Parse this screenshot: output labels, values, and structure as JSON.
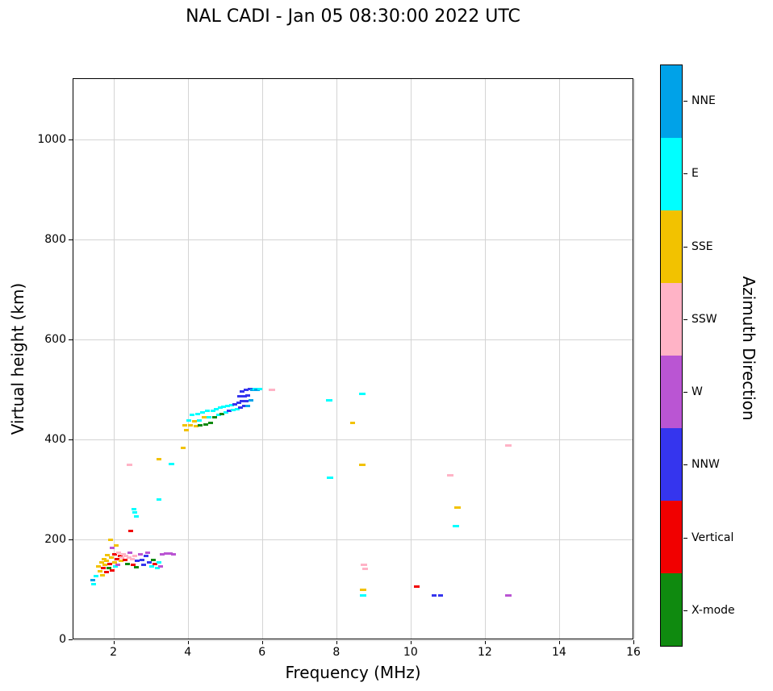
{
  "chart_data": {
    "type": "scatter",
    "title": "NAL CADI - Jan 05 08:30:00 2022 UTC",
    "xlabel": "Frequency (MHz)",
    "ylabel": "Virtual height (km)",
    "xlim": [
      0.9,
      16
    ],
    "ylim": [
      0,
      1122
    ],
    "xticks": [
      2,
      4,
      6,
      8,
      10,
      12,
      14,
      16
    ],
    "yticks": [
      0,
      200,
      400,
      600,
      800,
      1000
    ],
    "grid": true,
    "legend_position": "right-colorbar",
    "colorbar": {
      "label": "Azimuth Direction",
      "categories": [
        {
          "label": "NNE",
          "color": "#00a2e8"
        },
        {
          "label": "E",
          "color": "#00ffff"
        },
        {
          "label": "SSE",
          "color": "#f2c200"
        },
        {
          "label": "SSW",
          "color": "#ffb3c6"
        },
        {
          "label": "W",
          "color": "#ba55d3"
        },
        {
          "label": "NNW",
          "color": "#3535ee"
        },
        {
          "label": "Vertical",
          "color": "#f10000"
        },
        {
          "label": "X-mode",
          "color": "#0f8a0f"
        }
      ]
    },
    "points": [
      [
        1.42,
        120,
        "NNE"
      ],
      [
        1.45,
        112,
        "E"
      ],
      [
        1.5,
        128,
        "E"
      ],
      [
        1.58,
        148,
        "SSE"
      ],
      [
        1.62,
        138,
        "SSE"
      ],
      [
        1.65,
        155,
        "SSE"
      ],
      [
        1.68,
        130,
        "SSE"
      ],
      [
        1.7,
        145,
        "Vertical"
      ],
      [
        1.72,
        162,
        "SSE"
      ],
      [
        1.75,
        150,
        "SSE"
      ],
      [
        1.78,
        136,
        "Vertical"
      ],
      [
        1.8,
        158,
        "SSE"
      ],
      [
        1.82,
        170,
        "SSE"
      ],
      [
        1.85,
        145,
        "X-mode"
      ],
      [
        1.88,
        152,
        "Vertical"
      ],
      [
        1.9,
        200,
        "SSE"
      ],
      [
        1.92,
        165,
        "SSE"
      ],
      [
        1.95,
        140,
        "Vertical"
      ],
      [
        1.95,
        185,
        "W"
      ],
      [
        2.0,
        172,
        "Vertical"
      ],
      [
        2.0,
        155,
        "SSE"
      ],
      [
        2.02,
        148,
        "E"
      ],
      [
        2.05,
        190,
        "SSE"
      ],
      [
        2.08,
        162,
        "Vertical"
      ],
      [
        2.1,
        150,
        "W"
      ],
      [
        2.12,
        175,
        "SSW"
      ],
      [
        2.15,
        168,
        "Vertical"
      ],
      [
        2.18,
        158,
        "SSE"
      ],
      [
        2.2,
        165,
        "SSW"
      ],
      [
        2.25,
        172,
        "SSW"
      ],
      [
        2.3,
        160,
        "Vertical"
      ],
      [
        2.32,
        168,
        "SSW"
      ],
      [
        2.35,
        152,
        "X-mode"
      ],
      [
        2.4,
        165,
        "SSW"
      ],
      [
        2.42,
        175,
        "W"
      ],
      [
        2.45,
        218,
        "Vertical"
      ],
      [
        2.48,
        162,
        "SSW"
      ],
      [
        2.5,
        150,
        "Vertical"
      ],
      [
        2.55,
        168,
        "SSW"
      ],
      [
        2.6,
        146,
        "X-mode"
      ],
      [
        2.62,
        158,
        "NNW"
      ],
      [
        2.7,
        172,
        "W"
      ],
      [
        2.75,
        160,
        "NNW"
      ],
      [
        2.8,
        150,
        "NNW"
      ],
      [
        2.85,
        168,
        "NNW"
      ],
      [
        2.9,
        175,
        "W"
      ],
      [
        2.95,
        155,
        "NNW"
      ],
      [
        3.0,
        148,
        "E"
      ],
      [
        3.05,
        160,
        "X-mode"
      ],
      [
        3.1,
        152,
        "Vertical"
      ],
      [
        3.15,
        144,
        "E"
      ],
      [
        3.2,
        155,
        "E"
      ],
      [
        3.25,
        148,
        "W"
      ],
      [
        3.3,
        172,
        "W"
      ],
      [
        3.4,
        173,
        "W"
      ],
      [
        3.5,
        174,
        "W"
      ],
      [
        3.6,
        172,
        "W"
      ],
      [
        2.52,
        262,
        "E"
      ],
      [
        2.56,
        255,
        "E"
      ],
      [
        2.6,
        248,
        "E"
      ],
      [
        3.2,
        282,
        "E"
      ],
      [
        2.42,
        350,
        "SSW",
        7
      ],
      [
        3.55,
        352,
        "E",
        7
      ],
      [
        3.2,
        362,
        "SSE"
      ],
      [
        3.85,
        385,
        "SSE"
      ],
      [
        3.9,
        430,
        "SSE"
      ],
      [
        3.95,
        420,
        "SSE"
      ],
      [
        4.0,
        440,
        "E"
      ],
      [
        4.05,
        430,
        "SSE"
      ],
      [
        4.1,
        450,
        "E"
      ],
      [
        4.15,
        438,
        "SSE"
      ],
      [
        4.2,
        428,
        "SSE"
      ],
      [
        4.25,
        452,
        "E"
      ],
      [
        4.3,
        440,
        "E"
      ],
      [
        4.32,
        430,
        "X-mode"
      ],
      [
        4.38,
        455,
        "E"
      ],
      [
        4.42,
        445,
        "SSE"
      ],
      [
        4.46,
        432,
        "X-mode"
      ],
      [
        4.5,
        458,
        "E"
      ],
      [
        4.55,
        446,
        "E"
      ],
      [
        4.6,
        434,
        "X-mode"
      ],
      [
        4.65,
        458,
        "E"
      ],
      [
        4.7,
        446,
        "X-mode"
      ],
      [
        4.75,
        462,
        "E"
      ],
      [
        4.8,
        450,
        "E"
      ],
      [
        4.85,
        465,
        "E"
      ],
      [
        4.9,
        452,
        "X-mode"
      ],
      [
        4.95,
        466,
        "E"
      ],
      [
        5.0,
        455,
        "E"
      ],
      [
        5.05,
        468,
        "E"
      ],
      [
        5.1,
        458,
        "NNW"
      ],
      [
        5.15,
        470,
        "E"
      ],
      [
        5.2,
        460,
        "E"
      ],
      [
        5.25,
        472,
        "NNW"
      ],
      [
        5.3,
        462,
        "E"
      ],
      [
        5.35,
        474,
        "NNW"
      ],
      [
        5.38,
        488,
        "NNW"
      ],
      [
        5.4,
        465,
        "NNW"
      ],
      [
        5.45,
        478,
        "NNW"
      ],
      [
        5.45,
        497,
        "NNW"
      ],
      [
        5.5,
        468,
        "NNW"
      ],
      [
        5.5,
        488,
        "NNW"
      ],
      [
        5.55,
        500,
        "NNW"
      ],
      [
        5.55,
        478,
        "NNW"
      ],
      [
        5.6,
        490,
        "NNW"
      ],
      [
        5.6,
        468,
        "NNE"
      ],
      [
        5.65,
        502,
        "NNW"
      ],
      [
        5.68,
        480,
        "NNE"
      ],
      [
        5.72,
        500,
        "NNE"
      ],
      [
        5.78,
        502,
        "E"
      ],
      [
        5.85,
        500,
        "NNE",
        7
      ],
      [
        5.92,
        502,
        "E"
      ],
      [
        6.25,
        500,
        "SSW",
        8
      ],
      [
        7.78,
        480,
        "E",
        8
      ],
      [
        7.8,
        325,
        "E",
        8
      ],
      [
        8.42,
        435,
        "SSE",
        6
      ],
      [
        8.68,
        492,
        "E",
        8
      ],
      [
        8.67,
        351,
        "SSE",
        8
      ],
      [
        8.72,
        151,
        "SSW",
        8
      ],
      [
        8.76,
        143,
        "SSW",
        7
      ],
      [
        8.7,
        101,
        "SSE",
        8
      ],
      [
        8.69,
        90,
        "E",
        8
      ],
      [
        10.15,
        108,
        "Vertical",
        7
      ],
      [
        10.62,
        90,
        "NNW",
        6
      ],
      [
        10.78,
        90,
        "NNW",
        6
      ],
      [
        11.05,
        330,
        "SSW",
        8
      ],
      [
        11.25,
        265,
        "SSE",
        8
      ],
      [
        11.2,
        228,
        "E",
        8
      ],
      [
        12.6,
        390,
        "SSW",
        8
      ],
      [
        12.62,
        90,
        "W",
        8
      ]
    ]
  }
}
